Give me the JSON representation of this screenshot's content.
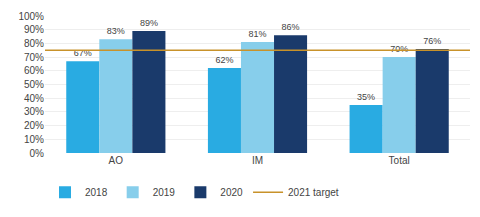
{
  "chart_data": {
    "type": "bar",
    "categories": [
      "AO",
      "IM",
      "Total"
    ],
    "series": [
      {
        "name": "2018",
        "color": "#29ABE2",
        "values": [
          67,
          62,
          35
        ],
        "value_labels": [
          "67%",
          "62%",
          "35%"
        ]
      },
      {
        "name": "2019",
        "color": "#87CEEB",
        "values": [
          83,
          81,
          70
        ],
        "value_labels": [
          "83%",
          "81%",
          "70%"
        ]
      },
      {
        "name": "2020",
        "color": "#1A3A6B",
        "values": [
          89,
          86,
          76
        ],
        "value_labels": [
          "89%",
          "86%",
          "76%"
        ]
      }
    ],
    "target": {
      "name": "2021 target",
      "value": 75,
      "color": "#C8922A",
      "line_style": "solid"
    },
    "ylim": [
      0,
      100
    ],
    "yticks": [
      {
        "value": 0,
        "label": "0%"
      },
      {
        "value": 10,
        "label": "10%"
      },
      {
        "value": 20,
        "label": "20%"
      },
      {
        "value": 30,
        "label": "30%"
      },
      {
        "value": 40,
        "label": "40%"
      },
      {
        "value": 50,
        "label": "50%"
      },
      {
        "value": 60,
        "label": "60%"
      },
      {
        "value": 70,
        "label": "70%"
      },
      {
        "value": 80,
        "label": "80%"
      },
      {
        "value": 90,
        "label": "90%"
      },
      {
        "value": 100,
        "label": "100%"
      }
    ],
    "grid": true,
    "data_labels": true,
    "legend": "bottom"
  }
}
